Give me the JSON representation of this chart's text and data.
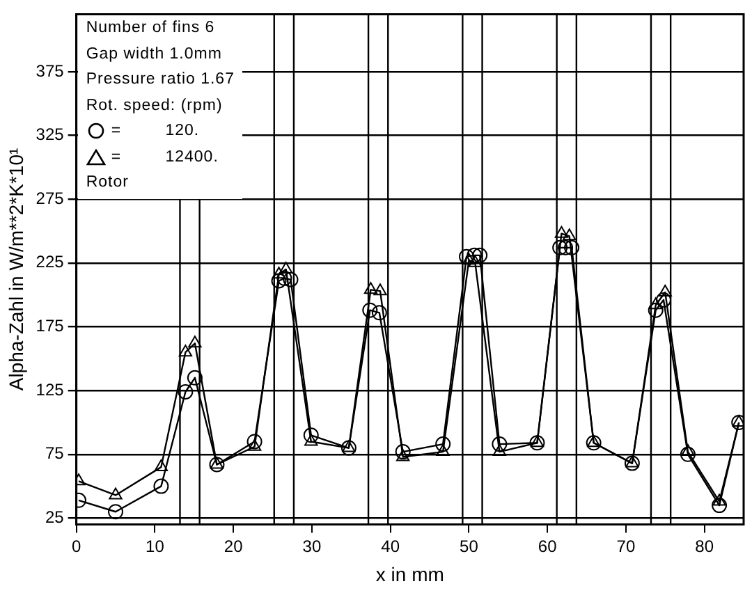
{
  "chart_data": {
    "type": "line",
    "xlabel": "x in mm",
    "ylabel": "Alpha-Zahl in W/m**2*K*10¹",
    "legend_title": "Rot. speed: (rpm)",
    "annotations": [
      "Number of fins 6",
      "Gap width 1.0mm",
      "Pressure ratio 1.67",
      "Rotor"
    ],
    "xlim": [
      0,
      85
    ],
    "xticks": [
      0,
      10,
      20,
      30,
      40,
      50,
      60,
      70,
      80
    ],
    "ylim": [
      20,
      420
    ],
    "yticks": [
      25,
      75,
      125,
      175,
      225,
      275,
      325,
      375
    ],
    "grid": "y",
    "legend": "top left",
    "line_style": "solid",
    "series": [
      {
        "name": "= 120.",
        "color": "#000000",
        "marker": "circle",
        "x": [
          0.3,
          5.0,
          10.8,
          13.9,
          15.1,
          17.9,
          22.7,
          25.8,
          26.5,
          27.3,
          29.9,
          34.7,
          37.4,
          38.6,
          41.6,
          46.7,
          49.7,
          50.7,
          51.4,
          53.9,
          58.7,
          61.6,
          62.3,
          63.1,
          65.9,
          70.8,
          73.8,
          74.8,
          77.9,
          81.9,
          84.4
        ],
        "values": [
          39,
          30,
          50,
          124,
          135,
          67,
          85,
          211,
          213,
          212,
          90,
          80,
          188,
          186,
          77,
          83,
          230,
          231,
          231,
          83,
          84,
          237,
          237,
          237,
          84,
          68,
          188,
          196,
          75,
          35,
          100
        ]
      },
      {
        "name": "= 12400.",
        "color": "#000000",
        "marker": "triangle",
        "x": [
          0.3,
          5.0,
          10.8,
          13.9,
          15.1,
          17.9,
          22.7,
          25.8,
          26.7,
          29.9,
          34.7,
          37.5,
          38.7,
          41.6,
          46.7,
          50.0,
          50.8,
          53.9,
          58.7,
          61.8,
          62.8,
          65.9,
          70.8,
          73.8,
          75.0,
          77.9,
          81.9,
          84.4
        ],
        "values": [
          54,
          43,
          65,
          155,
          162,
          67,
          81,
          216,
          220,
          85,
          80,
          204,
          203,
          73,
          77,
          227,
          225,
          77,
          84,
          248,
          246,
          84,
          68,
          192,
          202,
          77,
          38,
          100
        ]
      }
    ],
    "ref_lines": [
      {
        "axis": "x",
        "value": 13.2
      },
      {
        "axis": "x",
        "value": 15.7
      },
      {
        "axis": "x",
        "value": 25.2
      },
      {
        "axis": "x",
        "value": 27.7
      },
      {
        "axis": "x",
        "value": 37.2
      },
      {
        "axis": "x",
        "value": 39.7
      },
      {
        "axis": "x",
        "value": 49.2
      },
      {
        "axis": "x",
        "value": 51.7
      },
      {
        "axis": "x",
        "value": 61.2
      },
      {
        "axis": "x",
        "value": 63.7
      },
      {
        "axis": "x",
        "value": 73.2
      },
      {
        "axis": "x",
        "value": 75.7
      }
    ]
  }
}
